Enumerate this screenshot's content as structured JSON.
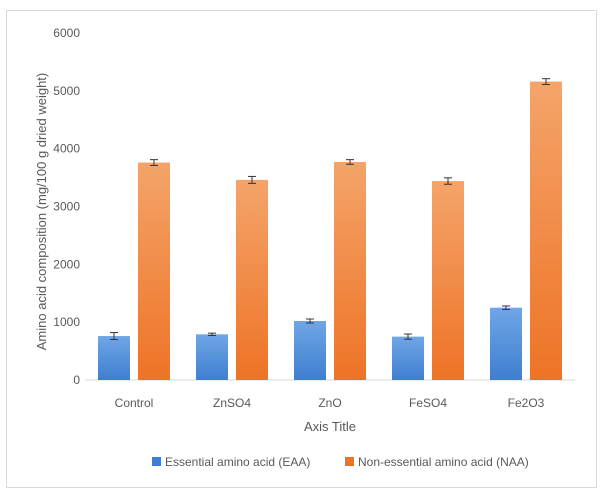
{
  "chart_data": {
    "type": "bar",
    "title": "",
    "xlabel": "Axis Title",
    "ylabel": "Amino acid composition (mg/100 g dried weight)",
    "categories": [
      "Control",
      "ZnSO4",
      "ZnO",
      "FeSO4",
      "Fe2O3"
    ],
    "ylim": [
      0,
      6000
    ],
    "yticks": [
      "0",
      "1000",
      "2000",
      "3000",
      "4000",
      "5000",
      "6000"
    ],
    "grid": false,
    "legend_position": "bottom",
    "series": [
      {
        "name": "Essential amino acid (EAA)",
        "color_top": "#6fa6e6",
        "color_bottom": "#3f7fd0",
        "values": [
          760,
          790,
          1020,
          750,
          1250
        ],
        "errors": [
          60,
          20,
          35,
          45,
          30
        ]
      },
      {
        "name": "Non-essential amino acid (NAA)",
        "color_top": "#f4a46a",
        "color_bottom": "#ee7326",
        "values": [
          3760,
          3460,
          3770,
          3440,
          5160
        ],
        "errors": [
          50,
          60,
          40,
          55,
          50
        ]
      }
    ]
  }
}
